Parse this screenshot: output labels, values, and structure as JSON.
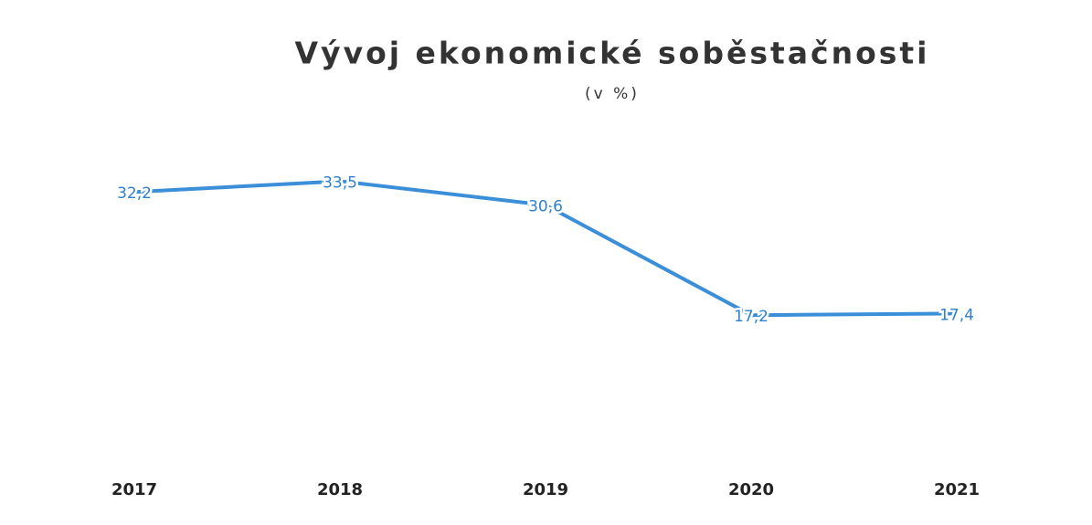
{
  "chart_data": {
    "type": "line",
    "title": "Vývoj ekonomické soběstačnosti",
    "subtitle": "(v %)",
    "categories": [
      "2017",
      "2018",
      "2019",
      "2020",
      "2021"
    ],
    "series": [
      {
        "name": null,
        "color": "#3b8fd8",
        "values": [
          32.2,
          33.5,
          30.6,
          17.2,
          17.4
        ],
        "value_labels": [
          "32,2",
          "33,5",
          "30,6",
          "17,2",
          "17,4"
        ]
      }
    ],
    "ylim": [
      0,
      40
    ]
  }
}
